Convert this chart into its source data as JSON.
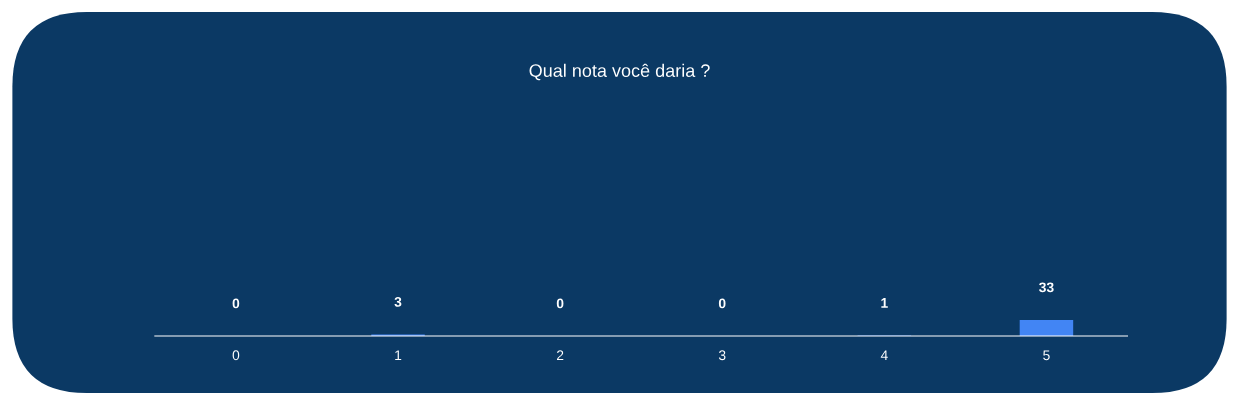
{
  "chart_data": {
    "type": "bar",
    "title": "Qual nota você daria ?",
    "categories": [
      "0",
      "1",
      "2",
      "3",
      "4",
      "5"
    ],
    "values": [
      0,
      3,
      0,
      0,
      1,
      33
    ],
    "color": "#4285f4",
    "data_labels": true
  }
}
